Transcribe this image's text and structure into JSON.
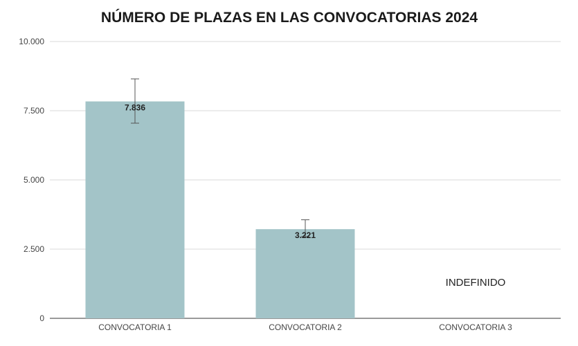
{
  "chart_data": {
    "type": "bar",
    "title": "NÚMERO DE PLAZAS EN LAS CONVOCATORIAS 2024",
    "xlabel": "",
    "ylabel": "",
    "ylim": [
      0,
      10000
    ],
    "yticks": [
      0,
      2500,
      5000,
      7500,
      10000
    ],
    "ytick_labels": [
      "0",
      "2.500",
      "5.000",
      "7.500",
      "10.000"
    ],
    "grid": true,
    "legend": "none",
    "categories": [
      "CONVOCATORIA 1",
      "CONVOCATORIA 2",
      "CONVOCATORIA 3"
    ],
    "values": [
      7836,
      3221,
      null
    ],
    "value_labels": [
      "7.836",
      "3.221",
      ""
    ],
    "error_bars": [
      {
        "low": 7050,
        "high": 8650
      },
      {
        "low": 2950,
        "high": 3560
      },
      null
    ],
    "annotations": [
      {
        "category_index": 2,
        "text": "INDEFINIDO"
      }
    ],
    "colors": {
      "bar": "#a3c4c8",
      "grid": "#d9d9d9",
      "axis": "#333333",
      "error_bar": "#555555"
    }
  }
}
